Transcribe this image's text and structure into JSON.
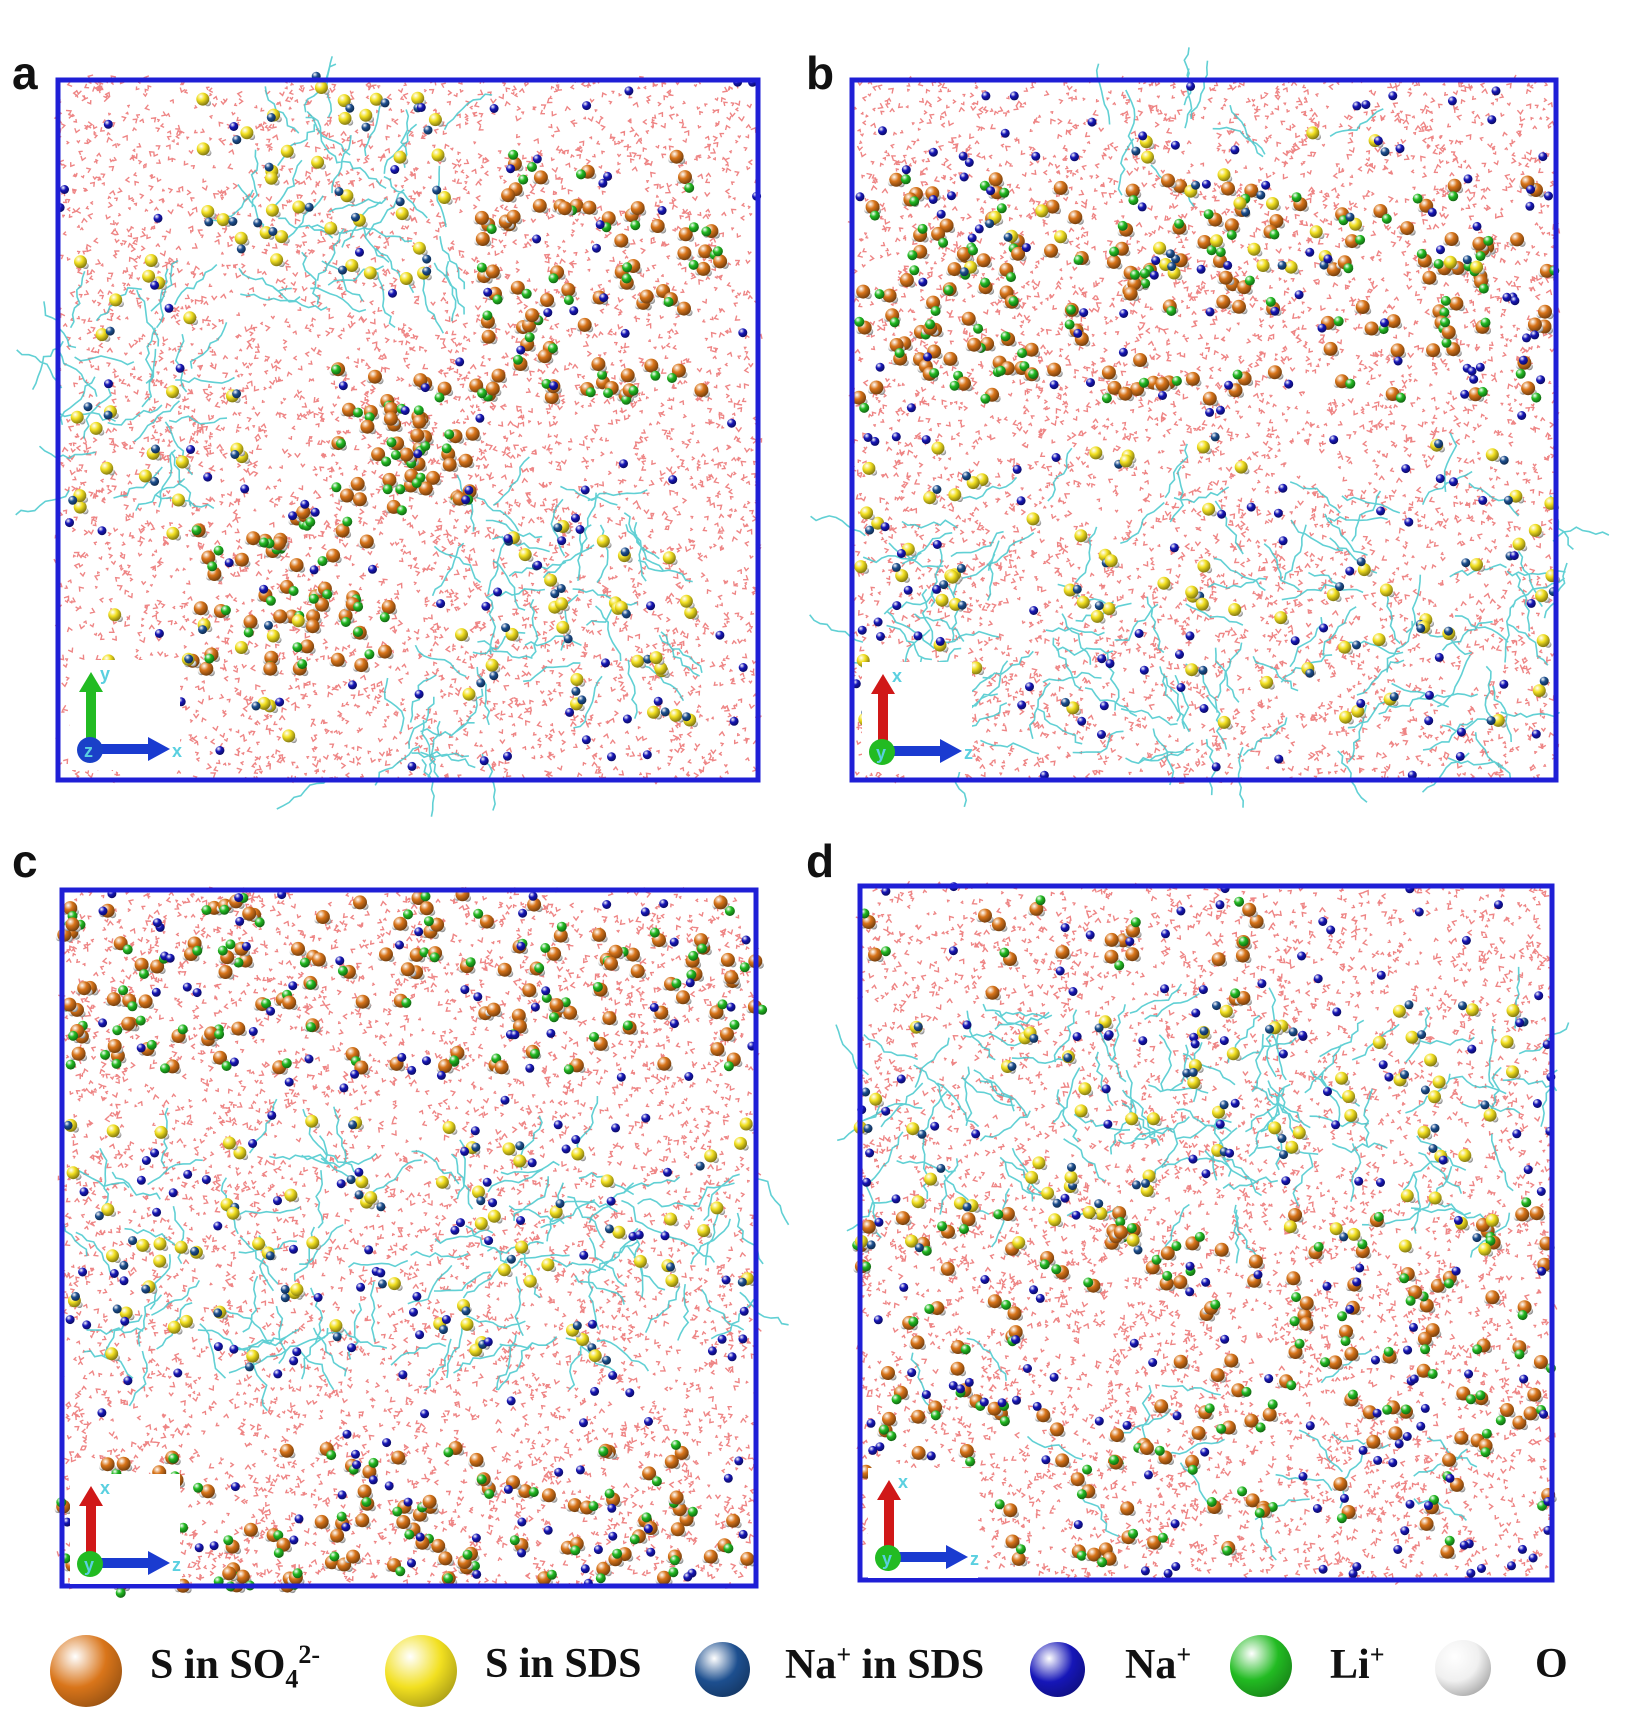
{
  "colors": {
    "box": "#1f1fd6",
    "water": "#e02020",
    "chain": "#45c8cc",
    "s_so4": "#d9751a",
    "s_sds": "#f2e020",
    "na_sds": "#1d4f8f",
    "na": "#1616b8",
    "li": "#22bb22",
    "o": "#f0f0f0"
  },
  "panels": [
    {
      "label": "a",
      "axes": {
        "up": "y",
        "right": "x",
        "center": "z"
      }
    },
    {
      "label": "b",
      "axes": {
        "up": "x",
        "right": "z",
        "center": "y"
      }
    },
    {
      "label": "c",
      "axes": {
        "up": "x",
        "right": "z",
        "center": "y"
      }
    },
    {
      "label": "d",
      "axes": {
        "up": "x",
        "right": "z",
        "center": "y"
      }
    }
  ],
  "legend": [
    {
      "key": "s_so4",
      "pre": "S in SO",
      "sub": "4",
      "sup": "2-",
      "post": ""
    },
    {
      "key": "s_sds",
      "pre": "S in SDS",
      "sub": "",
      "sup": "",
      "post": ""
    },
    {
      "key": "na_sds",
      "pre": "Na",
      "sub": "",
      "sup": "+",
      "post": " in SDS"
    },
    {
      "key": "na",
      "pre": "Na",
      "sub": "",
      "sup": "+",
      "post": ""
    },
    {
      "key": "li",
      "pre": "Li",
      "sub": "",
      "sup": "+",
      "post": ""
    },
    {
      "key": "o",
      "pre": "O",
      "sub": "",
      "sup": "",
      "post": ""
    }
  ]
}
